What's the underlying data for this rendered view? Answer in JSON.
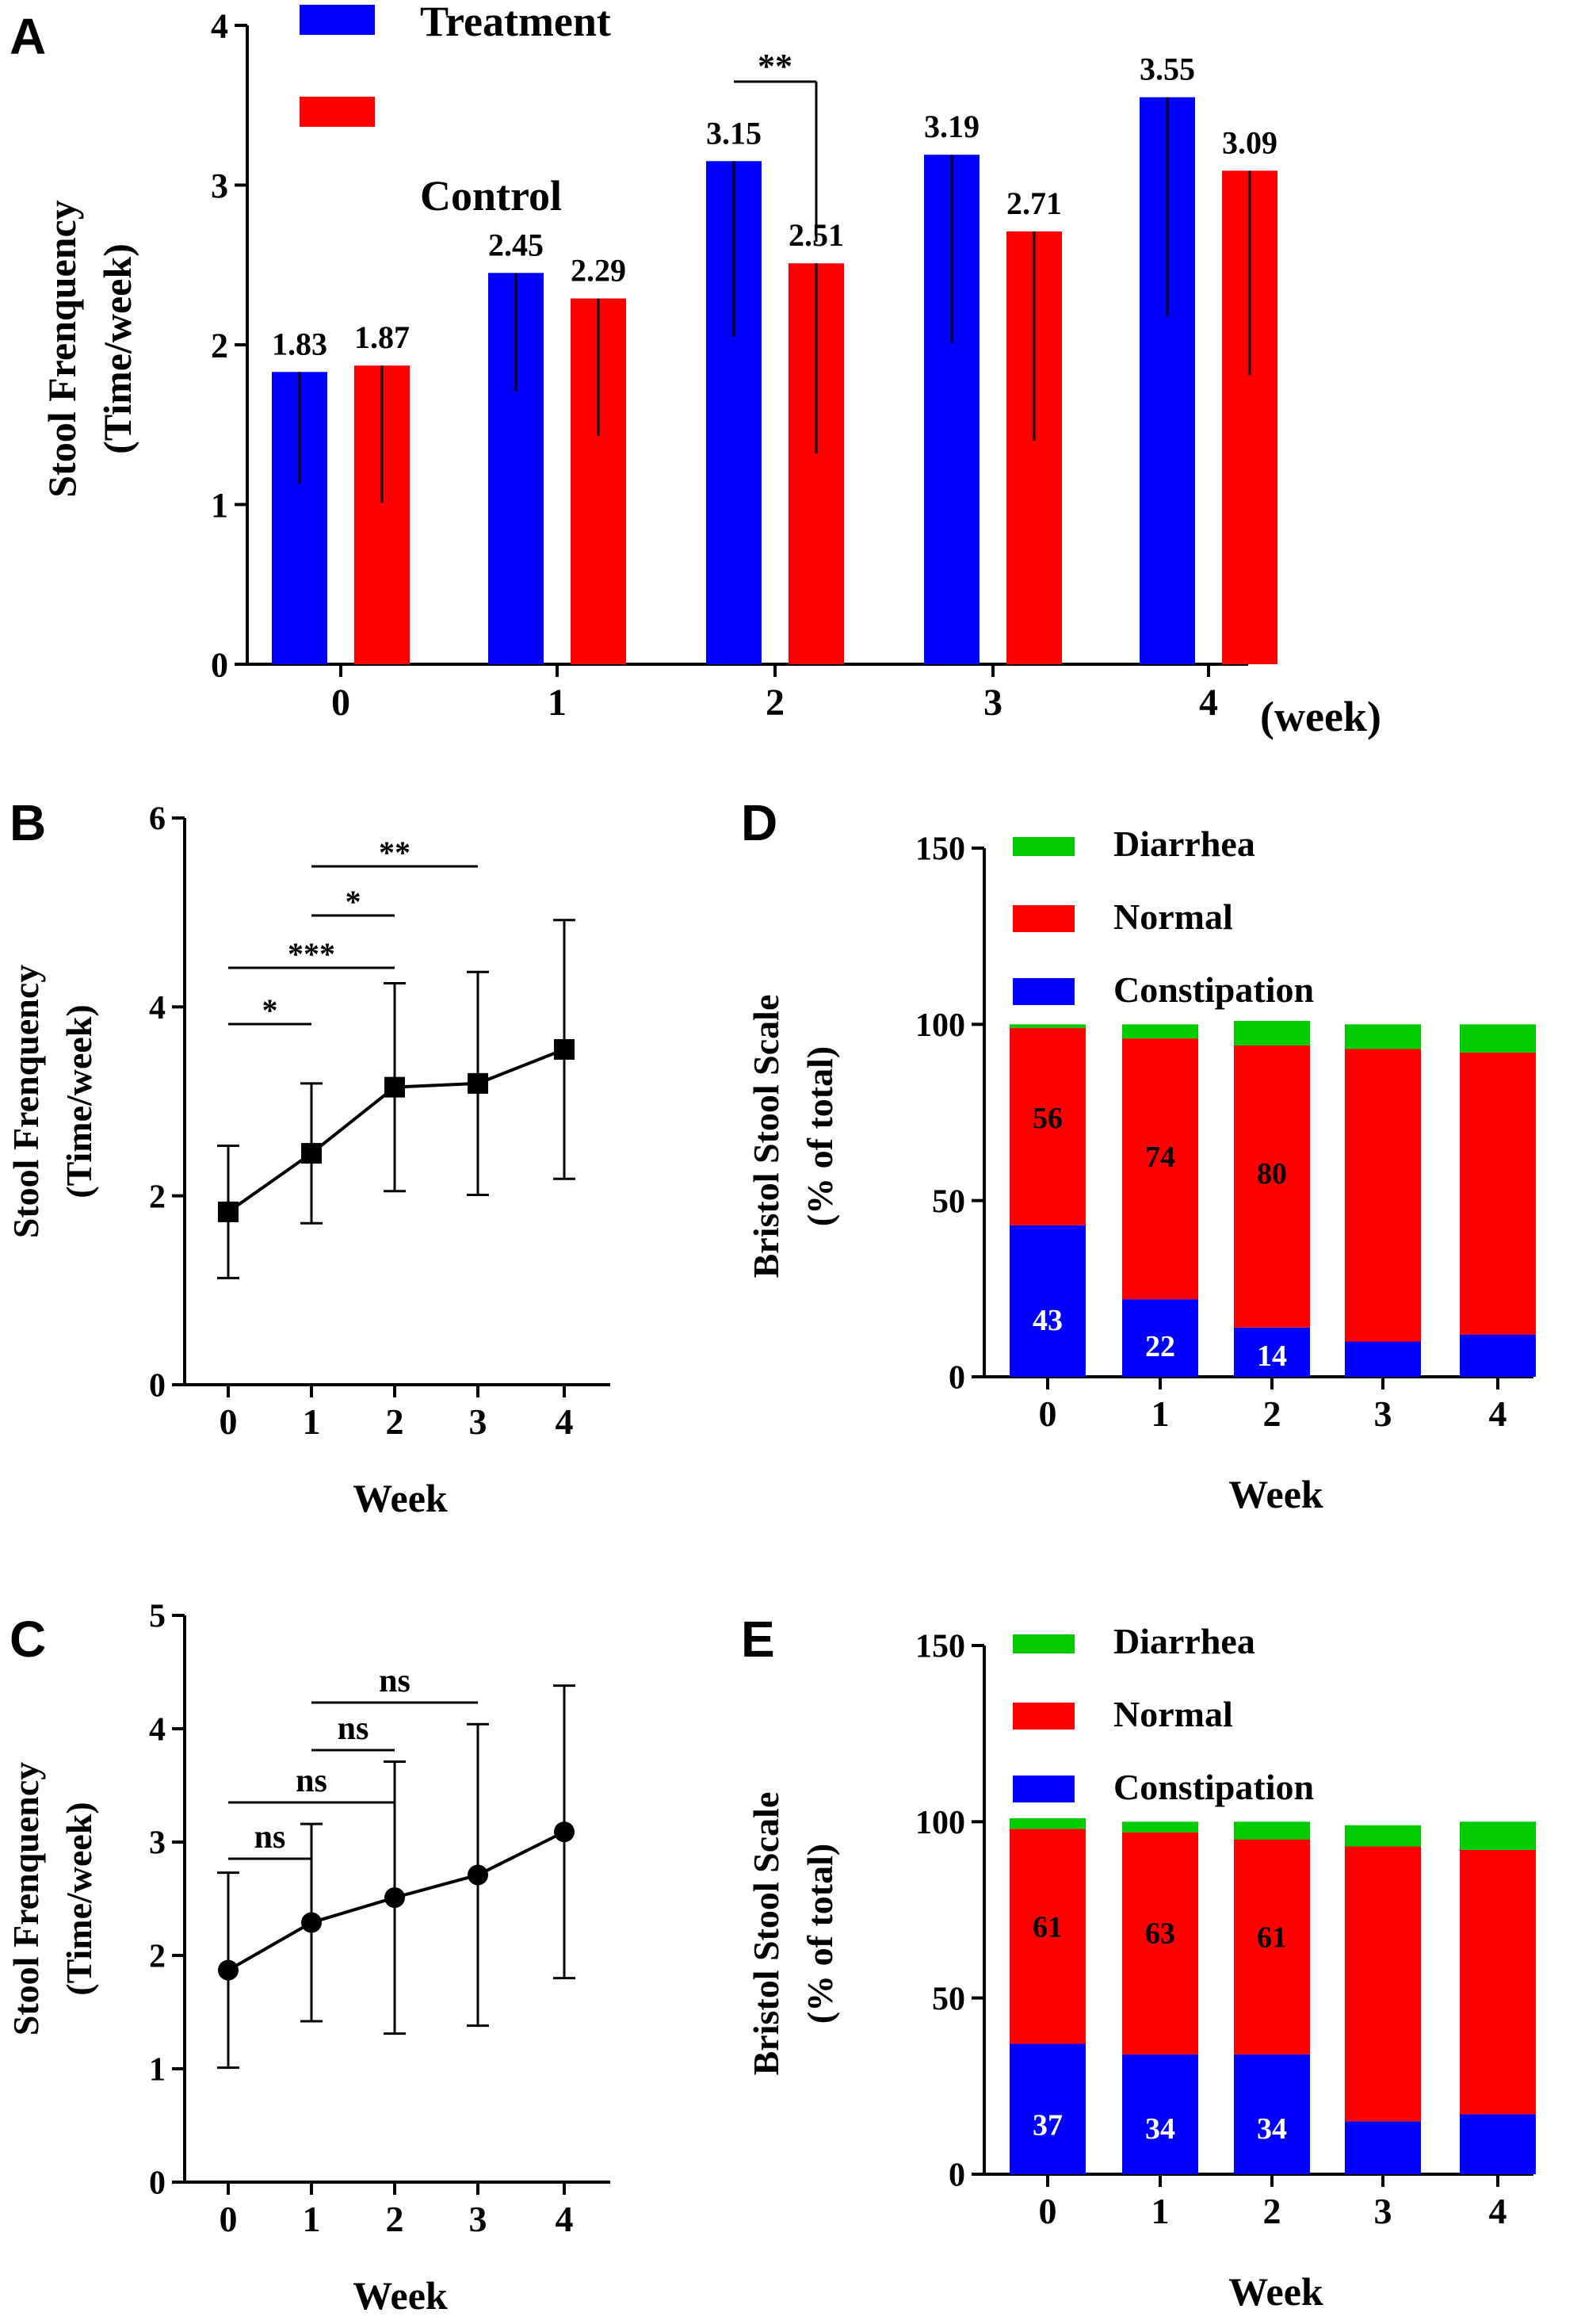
{
  "chart_data": [
    {
      "panel": "A",
      "type": "bar",
      "categories": [
        "0",
        "1",
        "2",
        "3",
        "4"
      ],
      "xunit": "(week)",
      "ylabel": "Stool Frenquency",
      "ylabel2": "(Time/week)",
      "ylim": [
        0,
        4
      ],
      "yticks": [
        "0",
        "1",
        "2",
        "3",
        "4"
      ],
      "series": [
        {
          "name": "Treatment",
          "color": "#0000ff",
          "values": [
            1.83,
            2.45,
            3.15,
            3.19,
            3.55
          ],
          "labels": [
            "1.83",
            "2.45",
            "3.15",
            "3.19",
            "3.55"
          ],
          "err_low": [
            1.13,
            1.71,
            2.05,
            2.01,
            2.18
          ],
          "err_high": [
            1.83,
            2.45,
            3.15,
            3.19,
            3.55
          ]
        },
        {
          "name": "Control",
          "color": "#ff0000",
          "values": [
            1.87,
            2.29,
            2.51,
            2.71,
            3.09
          ],
          "labels": [
            "1.87",
            "2.29",
            "2.51",
            "2.71",
            "3.09"
          ],
          "err_low": [
            1.01,
            1.43,
            1.32,
            1.4,
            1.81
          ],
          "err_high": [
            1.87,
            2.29,
            2.51,
            2.71,
            3.09
          ]
        }
      ],
      "annotations": [
        {
          "category": "2",
          "text": "**"
        }
      ]
    },
    {
      "panel": "B",
      "type": "line",
      "x": [
        "0",
        "1",
        "2",
        "3",
        "4"
      ],
      "values": [
        1.83,
        2.45,
        3.15,
        3.19,
        3.55
      ],
      "err": [
        0.7,
        0.74,
        1.1,
        1.18,
        1.37
      ],
      "marker": "square",
      "xlabel": "Week",
      "ylabel": "Stool Frenquency",
      "ylabel2": "(Time/week)",
      "ylim": [
        0,
        6
      ],
      "yticks": [
        "0",
        "2",
        "4",
        "6"
      ],
      "comparisons": [
        {
          "from": 0,
          "to": 1,
          "text": "*"
        },
        {
          "from": 0,
          "to": 2,
          "text": "***"
        },
        {
          "from": 1,
          "to": 2,
          "text": "*"
        },
        {
          "from": 1,
          "to": 3,
          "text": "**"
        }
      ]
    },
    {
      "panel": "C",
      "type": "line",
      "x": [
        "0",
        "1",
        "2",
        "3",
        "4"
      ],
      "values": [
        1.87,
        2.29,
        2.51,
        2.71,
        3.09
      ],
      "err": [
        0.86,
        0.87,
        1.2,
        1.33,
        1.29
      ],
      "marker": "circle",
      "xlabel": "Week",
      "ylabel": "Stool Frenquency",
      "ylabel2": "(Time/week)",
      "ylim": [
        0,
        5
      ],
      "yticks": [
        "0",
        "1",
        "2",
        "3",
        "4",
        "5"
      ],
      "comparisons": [
        {
          "from": 0,
          "to": 1,
          "text": "ns"
        },
        {
          "from": 0,
          "to": 2,
          "text": "ns"
        },
        {
          "from": 1,
          "to": 2,
          "text": "ns"
        },
        {
          "from": 1,
          "to": 3,
          "text": "ns"
        }
      ]
    },
    {
      "panel": "D",
      "type": "bar",
      "stacked": true,
      "categories": [
        "0",
        "1",
        "2",
        "3",
        "4"
      ],
      "xlabel": "Week",
      "ylabel": "Bristol Stool Scale",
      "ylabel2": "(% of total)",
      "ylim": [
        0,
        150
      ],
      "yticks": [
        "0",
        "50",
        "100",
        "150"
      ],
      "series": [
        {
          "name": "Constipation",
          "color": "#0000ff",
          "values": [
            43,
            22,
            14,
            10,
            12
          ],
          "labels": [
            "43",
            "22",
            "14",
            "",
            ""
          ]
        },
        {
          "name": "Normal",
          "color": "#ff0000",
          "values": [
            56,
            74,
            80,
            83,
            80
          ],
          "labels": [
            "56",
            "74",
            "80",
            "",
            ""
          ]
        },
        {
          "name": "Diarrhea",
          "color": "#00cc00",
          "values": [
            1,
            4,
            7,
            7,
            8
          ],
          "labels": [
            "",
            "",
            "",
            "",
            ""
          ]
        }
      ],
      "legend": [
        "Diarrhea",
        "Normal",
        "Constipation"
      ]
    },
    {
      "panel": "E",
      "type": "bar",
      "stacked": true,
      "categories": [
        "0",
        "1",
        "2",
        "3",
        "4"
      ],
      "xlabel": "Week",
      "ylabel": "Bristol Stool Scale",
      "ylabel2": "(% of total)",
      "ylim": [
        0,
        150
      ],
      "yticks": [
        "0",
        "50",
        "100",
        "150"
      ],
      "series": [
        {
          "name": "Constipation",
          "color": "#0000ff",
          "values": [
            37,
            34,
            34,
            15,
            17
          ],
          "labels": [
            "37",
            "34",
            "34",
            "",
            ""
          ]
        },
        {
          "name": "Normal",
          "color": "#ff0000",
          "values": [
            61,
            63,
            61,
            78,
            75
          ],
          "labels": [
            "61",
            "63",
            "61",
            "",
            ""
          ]
        },
        {
          "name": "Diarrhea",
          "color": "#00cc00",
          "values": [
            3,
            3,
            5,
            6,
            8
          ],
          "labels": [
            "",
            "",
            "",
            "",
            ""
          ]
        }
      ],
      "legend": [
        "Diarrhea",
        "Normal",
        "Constipation"
      ]
    }
  ]
}
